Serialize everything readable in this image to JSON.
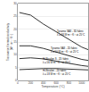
{
  "chart_data": {
    "type": "line",
    "xlabel": "Temperature (°C)",
    "ylabel": "Transverse thermal conductivity\n(W · m⁻¹ · K⁻¹)",
    "x": [
      25,
      200,
      400,
      600,
      800,
      1000,
      1100
    ],
    "series": [
      {
        "color": "#333333",
        "values": [
          26.5,
          25.5,
          22,
          19,
          16,
          13,
          12
        ]
      },
      {
        "color": "#333333",
        "values": [
          13.5,
          13.5,
          12.5,
          11,
          9.5,
          8.2,
          7.8
        ]
      },
      {
        "color": "#333333",
        "values": [
          8.5,
          8.8,
          8.4,
          7.5,
          6.5,
          5.8,
          5.5
        ]
      },
      {
        "color": "#333333",
        "values": [
          4.2,
          4.5,
          4.6,
          4.6,
          4.5,
          4.3,
          4.1
        ]
      }
    ],
    "xlim": [
      0,
      1100
    ],
    "ylim": [
      0,
      30
    ],
    "xticks": [
      0,
      200,
      400,
      600,
      800,
      1000
    ],
    "yticks": [
      0,
      5,
      10,
      15,
      20,
      25,
      30
    ],
    "grid": "y",
    "annotations": [
      {
        "text": "Tyranno SA3 - 3D fabric\nλ = 68 W·m⁻¹·K⁻¹ at 25°C",
        "x": 590,
        "y": 18.5
      },
      {
        "text": "Tyranno SA3 - 2D fabric\nλ = 50 W·m⁻¹·K⁻¹ at 25°C",
        "x": 490,
        "y": 11.8
      },
      {
        "text": "Hi-Nicalon S - 2D fabric\nλ = 56 W·m⁻¹·K⁻¹ at 25°C",
        "x": 360,
        "y": 7.8
      },
      {
        "text": "Hi-Nicalon - 2D fabric\nλ = 18 W·m⁻¹·K⁻¹ at 25°C",
        "x": 360,
        "y": 3.0
      }
    ]
  }
}
